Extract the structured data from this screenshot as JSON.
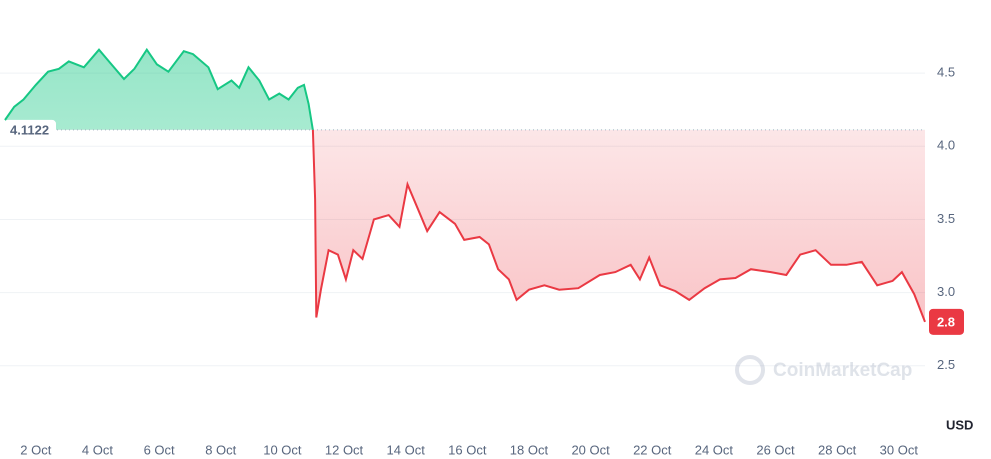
{
  "chart_data": {
    "type": "line",
    "x": [
      1.0,
      1.3,
      1.6,
      2.0,
      2.4,
      2.75,
      3.07,
      3.56,
      4.05,
      4.37,
      4.86,
      5.2,
      5.6,
      5.93,
      6.3,
      6.8,
      7.1,
      7.6,
      7.9,
      8.35,
      8.6,
      8.9,
      9.25,
      9.57,
      9.9,
      10.2,
      10.5,
      10.7,
      10.85,
      10.99,
      11.06,
      11.1,
      11.25,
      11.5,
      11.8,
      12.06,
      12.3,
      12.6,
      12.97,
      13.45,
      13.8,
      14.06,
      14.4,
      14.7,
      15.1,
      15.6,
      15.9,
      16.4,
      16.7,
      17.0,
      17.35,
      17.6,
      18.0,
      18.5,
      18.98,
      19.6,
      20.3,
      20.8,
      21.3,
      21.6,
      21.9,
      22.26,
      22.75,
      23.2,
      23.7,
      24.2,
      24.7,
      25.2,
      25.85,
      26.35,
      26.8,
      27.3,
      27.8,
      28.3,
      28.8,
      29.3,
      29.8,
      30.1,
      30.5,
      30.85
    ],
    "series": [
      {
        "color": "#ea3943",
        "values": [
          4.18,
          4.27,
          4.32,
          4.42,
          4.51,
          4.53,
          4.58,
          4.54,
          4.66,
          4.58,
          4.46,
          4.53,
          4.66,
          4.56,
          4.51,
          4.65,
          4.63,
          4.54,
          4.39,
          4.45,
          4.4,
          4.54,
          4.45,
          4.32,
          4.36,
          4.32,
          4.4,
          4.42,
          4.29,
          4.11,
          3.64,
          2.83,
          3.02,
          3.29,
          3.26,
          3.09,
          3.29,
          3.23,
          3.5,
          3.53,
          3.45,
          3.74,
          3.57,
          3.42,
          3.55,
          3.47,
          3.36,
          3.38,
          3.33,
          3.16,
          3.09,
          2.95,
          3.02,
          3.05,
          3.02,
          3.03,
          3.12,
          3.14,
          3.19,
          3.09,
          3.24,
          3.05,
          3.01,
          2.95,
          3.03,
          3.09,
          3.1,
          3.16,
          3.14,
          3.12,
          3.26,
          3.29,
          3.19,
          3.19,
          3.21,
          3.05,
          3.08,
          3.14,
          2.99,
          2.8
        ]
      }
    ],
    "up_color": "#16c784",
    "baseline": 4.1122,
    "xlim": [
      1,
      30.85
    ],
    "ylim": [
      2.3,
      5.0
    ],
    "xticks": [
      {
        "value": 2,
        "label": "2 Oct"
      },
      {
        "value": 4,
        "label": "4 Oct"
      },
      {
        "value": 6,
        "label": "6 Oct"
      },
      {
        "value": 8,
        "label": "8 Oct"
      },
      {
        "value": 10,
        "label": "10 Oct"
      },
      {
        "value": 12,
        "label": "12 Oct"
      },
      {
        "value": 14,
        "label": "14 Oct"
      },
      {
        "value": 16,
        "label": "16 Oct"
      },
      {
        "value": 18,
        "label": "18 Oct"
      },
      {
        "value": 20,
        "label": "20 Oct"
      },
      {
        "value": 22,
        "label": "22 Oct"
      },
      {
        "value": 24,
        "label": "24 Oct"
      },
      {
        "value": 26,
        "label": "26 Oct"
      },
      {
        "value": 28,
        "label": "28 Oct"
      },
      {
        "value": 30,
        "label": "30 Oct"
      }
    ],
    "yticks": [
      2.5,
      {
        "value": 3,
        "label": "3.0"
      },
      3.5,
      {
        "value": 4,
        "label": "4.0"
      },
      4.5
    ],
    "grid": true,
    "currency_label": "USD",
    "watermark": "CoinMarketCap"
  }
}
